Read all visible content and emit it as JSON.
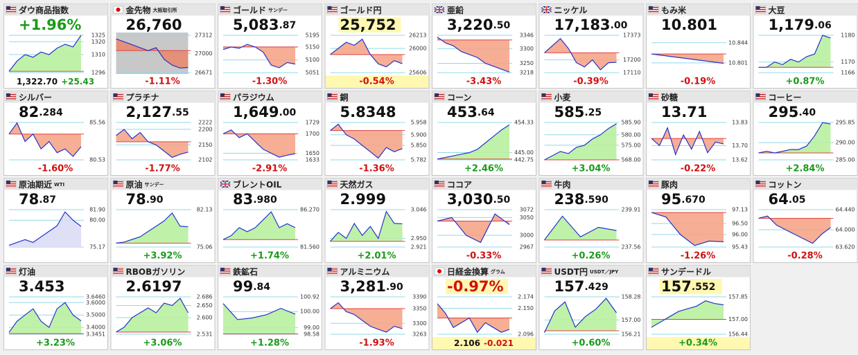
{
  "tiles": [
    {
      "flag": "us",
      "name": "ダウ商品指数",
      "price": [
        "+1.96%"
      ],
      "price_color": "#1a9a1a",
      "footer": [
        "1,322.70",
        "+25.43"
      ],
      "change_color": "#1a9a1a",
      "fill": "#b8f0a0",
      "ref": 1297,
      "ylim": [
        1296,
        1325
      ],
      "yticks": [
        1325,
        1320,
        1310,
        1296
      ],
      "series": [
        1297,
        1305,
        1310,
        1308,
        1312,
        1310,
        1315,
        1318,
        1316,
        1325
      ]
    },
    {
      "flag": "jp",
      "name": "金先物",
      "note": "大阪取引所",
      "price": [
        "26,760"
      ],
      "change": "-1.11%",
      "change_color": "#d01010",
      "fill": "#e88a70",
      "chart_bg": "#c8c8c8",
      "ref": 27050,
      "ylim": [
        26671,
        27312
      ],
      "yticks": [
        27312,
        27000,
        26671
      ],
      "series": [
        27250,
        27200,
        27150,
        27100,
        27050,
        27100,
        26900,
        26800,
        26750,
        26760
      ]
    },
    {
      "flag": "us",
      "name": "ゴールド",
      "note": "サンデー",
      "price": [
        "5,083",
        ".87"
      ],
      "change": "-1.30%",
      "change_color": "#d01010",
      "fill": "#f5a58a",
      "ref": 5150,
      "ylim": [
        5051,
        5195
      ],
      "yticks": [
        5195,
        5150,
        5100,
        5051
      ],
      "series": [
        5140,
        5150,
        5145,
        5160,
        5150,
        5130,
        5080,
        5070,
        5090,
        5084
      ]
    },
    {
      "flag": "us",
      "name": "ゴールド円",
      "price": [
        "25,752"
      ],
      "change": "-0.54%",
      "change_color": "#d01010",
      "fill": "#f5a58a",
      "highlight": true,
      "ref": 25900,
      "ylim": [
        25606,
        26213
      ],
      "yticks": [
        26213,
        26000,
        25606
      ],
      "series": [
        25900,
        26000,
        26100,
        26050,
        26150,
        25900,
        25750,
        25700,
        25800,
        25752
      ]
    },
    {
      "flag": "uk",
      "name": "亜鉛",
      "price": [
        "3,220",
        ".50"
      ],
      "change": "-3.43%",
      "change_color": "#d01010",
      "fill": "#f5a58a",
      "ref": 3330,
      "ylim": [
        3218,
        3346
      ],
      "yticks": [
        3346,
        3300,
        3250,
        3218
      ],
      "series": [
        3340,
        3320,
        3310,
        3290,
        3280,
        3270,
        3250,
        3240,
        3230,
        3220
      ]
    },
    {
      "flag": "uk",
      "name": "ニッケル",
      "price": [
        "17,183",
        ".00"
      ],
      "change": "-0.39%",
      "change_color": "#d01010",
      "fill": "#f5a58a",
      "ref": 17250,
      "ylim": [
        17110,
        17373
      ],
      "yticks": [
        17373,
        17200,
        17110
      ],
      "series": [
        17250,
        17300,
        17350,
        17280,
        17180,
        17150,
        17200,
        17130,
        17180,
        17183
      ]
    },
    {
      "flag": "us",
      "name": "もみ米",
      "price": [
        "10.801"
      ],
      "change": "-0.19%",
      "change_color": "#d01010",
      "fill": "#f5a58a",
      "ref": 10.82,
      "ylim": [
        10.78,
        10.86
      ],
      "yticks": [
        10.844,
        10.801
      ],
      "series": [
        10.82,
        10.8
      ]
    },
    {
      "flag": "us",
      "name": "大豆",
      "price": [
        "1,179",
        ".06"
      ],
      "change": "+0.87%",
      "change_color": "#1a9a1a",
      "fill": "#b8f0a0",
      "ref": 1168,
      "ylim": [
        1166,
        1180
      ],
      "yticks": [
        1180,
        1170,
        1166
      ],
      "series": [
        1168,
        1168,
        1170,
        1169,
        1171,
        1170,
        1172,
        1173,
        1180,
        1179
      ]
    },
    {
      "flag": "us",
      "name": "シルバー",
      "price": [
        "82",
        ".284"
      ],
      "change": "-1.60%",
      "change_color": "#d01010",
      "fill": "#f5a58a",
      "ref": 84,
      "ylim": [
        80.53,
        85.56
      ],
      "yticks": [
        85.56,
        80.53
      ],
      "series": [
        84,
        85.5,
        83,
        84,
        82,
        83,
        81.5,
        82,
        81,
        82.3
      ]
    },
    {
      "flag": "us",
      "name": "プラチナ",
      "price": [
        "2,127",
        ".55"
      ],
      "change": "-1.77%",
      "change_color": "#d01010",
      "fill": "#f5a58a",
      "ref": 2160,
      "ylim": [
        2102,
        2222
      ],
      "yticks": [
        2222,
        2200,
        2150,
        2102
      ],
      "series": [
        2180,
        2200,
        2170,
        2190,
        2160,
        2150,
        2130,
        2110,
        2120,
        2127
      ]
    },
    {
      "flag": "us",
      "name": "パラジウム",
      "price": [
        "1,649",
        ".00"
      ],
      "change": "-2.91%",
      "change_color": "#d01010",
      "fill": "#f5a58a",
      "ref": 1700,
      "ylim": [
        1633,
        1729
      ],
      "yticks": [
        1729,
        1700,
        1650,
        1633
      ],
      "series": [
        1700,
        1710,
        1690,
        1700,
        1680,
        1660,
        1650,
        1640,
        1645,
        1649
      ]
    },
    {
      "flag": "us",
      "name": "銅",
      "price": [
        "5.8348"
      ],
      "change": "-1.36%",
      "change_color": "#d01010",
      "fill": "#f5a58a",
      "ref": 5.92,
      "ylim": [
        5.782,
        5.958
      ],
      "yticks": [
        5.958,
        {
          "value": 5.9,
          "label": "5.900"
        },
        {
          "value": 5.85,
          "label": "5.850"
        },
        5.782
      ],
      "series": [
        5.92,
        5.95,
        5.9,
        5.88,
        5.85,
        5.82,
        5.79,
        5.84,
        5.82,
        5.835
      ]
    },
    {
      "flag": "us",
      "name": "コーン",
      "price": [
        "453",
        ".64"
      ],
      "change": "+2.46%",
      "change_color": "#1a9a1a",
      "fill": "#b8f0a0",
      "ref": 443,
      "ylim": [
        442.75,
        454.33
      ],
      "yticks": [
        454.33,
        {
          "value": 445,
          "label": "445.00"
        },
        442.75
      ],
      "series": [
        443,
        443.5,
        444,
        444.5,
        445,
        446,
        448,
        450,
        452,
        453.6
      ]
    },
    {
      "flag": "us",
      "name": "小麦",
      "price": [
        "585",
        ".25"
      ],
      "change": "+3.04%",
      "change_color": "#1a9a1a",
      "fill": "#b8f0a0",
      "ref": 568,
      "ylim": [
        568,
        585.9
      ],
      "yticks": [
        {
          "value": 585.9,
          "label": "585.90"
        },
        {
          "value": 580,
          "label": "580.00"
        },
        {
          "value": 575,
          "label": "575.00"
        },
        {
          "value": 568,
          "label": "568.00"
        }
      ],
      "series": [
        568,
        570,
        572,
        571,
        574,
        575,
        578,
        580,
        583,
        585.3
      ]
    },
    {
      "flag": "us",
      "name": "砂糖",
      "price": [
        "13.71"
      ],
      "change": "-0.22%",
      "change_color": "#d01010",
      "fill": "#f5a58a",
      "ref": 13.74,
      "ylim": [
        13.62,
        13.83
      ],
      "yticks": [
        13.83,
        {
          "value": 13.7,
          "label": "13.70"
        },
        13.62
      ],
      "series": [
        13.74,
        13.7,
        13.8,
        13.65,
        13.76,
        13.68,
        13.78,
        13.66,
        13.72,
        13.71
      ]
    },
    {
      "flag": "us",
      "name": "コーヒー",
      "price": [
        "295",
        ".40"
      ],
      "change": "+2.84%",
      "change_color": "#1a9a1a",
      "fill": "#b8f0a0",
      "ref": 287,
      "ylim": [
        285,
        295.85
      ],
      "yticks": [
        295.85,
        {
          "value": 290,
          "label": "290.00"
        },
        {
          "value": 285,
          "label": "285.00"
        }
      ],
      "series": [
        287,
        287.5,
        287,
        287.5,
        288,
        288,
        289,
        292,
        295.8,
        295.4
      ]
    },
    {
      "flag": "us",
      "name": "原油期近",
      "note": "WTI",
      "price": [
        "78",
        ".87"
      ],
      "fill": "#dcdcf5",
      "ylim": [
        75.17,
        81.9
      ],
      "yticks": [
        {
          "value": 81.9,
          "label": "81.90"
        },
        {
          "value": 80,
          "label": "80.00"
        },
        75.17
      ],
      "series": [
        75.5,
        76,
        76.5,
        76,
        77,
        78,
        79,
        81.5,
        80,
        78.9
      ]
    },
    {
      "flag": "us",
      "name": "原油",
      "note": "サンデー",
      "price": [
        "78",
        ".90"
      ],
      "change": "+3.92%",
      "change_color": "#1a9a1a",
      "fill": "#b8f0a0",
      "ref": 75.8,
      "ylim": [
        75.06,
        82.13
      ],
      "yticks": [
        82.13,
        75.06
      ],
      "series": [
        75.8,
        76,
        76.5,
        77,
        78,
        79,
        80,
        81.5,
        79,
        78.9
      ]
    },
    {
      "flag": "uk",
      "name": "ブレントOIL",
      "price": [
        "83",
        ".980"
      ],
      "change": "+1.74%",
      "change_color": "#1a9a1a",
      "fill": "#b8f0a0",
      "ref": 82.5,
      "ylim": [
        81.56,
        86.27
      ],
      "yticks": [
        {
          "value": 86.27,
          "label": "86.270"
        },
        {
          "value": 81.56,
          "label": "81.560"
        }
      ],
      "series": [
        82.5,
        83,
        84,
        83.5,
        84,
        85,
        86,
        84,
        84.5,
        84
      ]
    },
    {
      "flag": "us",
      "name": "天然ガス",
      "price": [
        "2.999"
      ],
      "change": "+2.01%",
      "change_color": "#1a9a1a",
      "fill": "#b8f0a0",
      "ref": 2.94,
      "ylim": [
        2.921,
        3.046
      ],
      "yticks": [
        3.046,
        {
          "value": 2.95,
          "label": "2.950"
        },
        2.921
      ],
      "series": [
        2.94,
        2.97,
        2.95,
        3.0,
        2.96,
        2.99,
        2.95,
        3.04,
        3.0,
        2.999
      ]
    },
    {
      "flag": "us",
      "name": "ココア",
      "price": [
        "3,030",
        ".50"
      ],
      "change": "-0.33%",
      "change_color": "#d01010",
      "fill": "#f5a58a",
      "ref": 3040,
      "ylim": [
        2967,
        3072
      ],
      "yticks": [
        3072,
        3050,
        3000,
        2967
      ],
      "series": [
        3040,
        3050,
        3000,
        2980,
        3060,
        3030
      ]
    },
    {
      "flag": "us",
      "name": "牛肉",
      "price": [
        "238",
        ".590"
      ],
      "change": "+0.26%",
      "change_color": "#1a9a1a",
      "fill": "#b8f0a0",
      "ref": 238,
      "ylim": [
        237.56,
        239.91
      ],
      "yticks": [
        239.91,
        237.56
      ],
      "series": [
        238,
        239.5,
        238.2,
        238.8,
        238.6
      ]
    },
    {
      "flag": "us",
      "name": "豚肉",
      "price": [
        "95",
        ".670"
      ],
      "change": "-1.26%",
      "change_color": "#d01010",
      "fill": "#f5a58a",
      "ref": 97,
      "ylim": [
        95.43,
        97.13
      ],
      "yticks": [
        97.13,
        {
          "value": 96.5,
          "label": "96.50"
        },
        {
          "value": 96,
          "label": "96.00"
        },
        95.43
      ],
      "series": [
        97,
        96.8,
        96,
        95.5,
        95.7,
        95.67
      ]
    },
    {
      "flag": "us",
      "name": "コットン",
      "price": [
        "64",
        ".05"
      ],
      "change": "-0.28%",
      "change_color": "#d01010",
      "fill": "#f5a58a",
      "ref": 64.25,
      "ylim": [
        63.62,
        64.44
      ],
      "yticks": [
        {
          "value": 64.44,
          "label": "64.440"
        },
        {
          "value": 64,
          "label": "64.000"
        },
        {
          "value": 63.62,
          "label": "63.620"
        }
      ],
      "series": [
        64.25,
        64.3,
        64.1,
        64,
        63.9,
        63.8,
        63.7,
        63.9,
        64.05
      ]
    },
    {
      "flag": "us",
      "name": "灯油",
      "price": [
        "3.453"
      ],
      "change": "+3.23%",
      "change_color": "#1a9a1a",
      "fill": "#b8f0a0",
      "ref": 3.35,
      "ylim": [
        3.3451,
        3.646
      ],
      "yticks": [
        {
          "value": 3.646,
          "label": "3.6460"
        },
        {
          "value": 3.6,
          "label": "3.6000"
        },
        {
          "value": 3.5,
          "label": "3.5000"
        },
        {
          "value": 3.4,
          "label": "3.4000"
        },
        3.3451
      ],
      "series": [
        3.36,
        3.45,
        3.5,
        3.55,
        3.45,
        3.4,
        3.55,
        3.6,
        3.5,
        3.453
      ]
    },
    {
      "flag": "us",
      "name": "RBOBガソリン",
      "price": [
        "2.6197"
      ],
      "change": "+3.06%",
      "change_color": "#1a9a1a",
      "fill": "#b8f0a0",
      "ref": 2.54,
      "ylim": [
        2.531,
        2.686
      ],
      "yticks": [
        2.686,
        {
          "value": 2.65,
          "label": "2.650"
        },
        {
          "value": 2.6,
          "label": "2.600"
        },
        2.531
      ],
      "series": [
        2.54,
        2.56,
        2.6,
        2.62,
        2.64,
        2.62,
        2.66,
        2.65,
        2.68,
        2.62
      ]
    },
    {
      "flag": "us",
      "name": "鉄鉱石",
      "price": [
        "99",
        ".84"
      ],
      "change": "+1.28%",
      "change_color": "#1a9a1a",
      "fill": "#b8f0a0",
      "ref": 98.6,
      "ylim": [
        98.58,
        100.92
      ],
      "yticks": [
        100.92,
        {
          "value": 100,
          "label": "100.00"
        },
        {
          "value": 99,
          "label": "99.00"
        },
        98.58
      ],
      "series": [
        100.5,
        99.5,
        99.6,
        99.8,
        100.2,
        99.84
      ]
    },
    {
      "flag": "us",
      "name": "アルミニウム",
      "price": [
        "3,281",
        ".90"
      ],
      "change": "-1.93%",
      "change_color": "#d01010",
      "fill": "#f5a58a",
      "ref": 3350,
      "ylim": [
        3263,
        3390
      ],
      "yticks": [
        3390,
        3350,
        3300,
        3263
      ],
      "series": [
        3350,
        3370,
        3340,
        3330,
        3310,
        3290,
        3280,
        3270,
        3290,
        3282
      ]
    },
    {
      "flag": "jp",
      "name": "日経金換算",
      "note": "グラム",
      "price": [
        "-0.97%"
      ],
      "price_color": "#d01010",
      "footer": [
        "2.106",
        "-0.021"
      ],
      "change_color": "#d01010",
      "fill": "#f5a58a",
      "highlight": true,
      "ref": 2.13,
      "ylim": [
        2.096,
        2.174
      ],
      "yticks": [
        2.174,
        {
          "value": 2.15,
          "label": "2.150"
        },
        2.096
      ],
      "series": [
        2.16,
        2.14,
        2.11,
        2.12,
        2.13,
        2.1,
        2.12,
        2.11,
        2.1,
        2.106
      ]
    },
    {
      "flag": "us",
      "name": "USDT円",
      "note": "USDT／JPY",
      "price": [
        "157",
        ".429"
      ],
      "change": "+0.60%",
      "change_color": "#1a9a1a",
      "fill": "#b8f0a0",
      "ref": 156.4,
      "ylim": [
        156.21,
        158.28
      ],
      "yticks": [
        158.28,
        {
          "value": 157,
          "label": "157.00"
        },
        156.21
      ],
      "series": [
        156.3,
        157.5,
        158,
        156.6,
        157.2,
        157.6,
        158.2,
        157.4
      ]
    },
    {
      "flag": "us",
      "name": "サンデードル",
      "price": [
        "157",
        ".552"
      ],
      "change": "+0.34%",
      "change_color": "#1a9a1a",
      "fill": "#b8f0a0",
      "highlight": true,
      "ref": 157,
      "ylim": [
        156.44,
        157.85
      ],
      "yticks": [
        157.85,
        {
          "value": 157,
          "label": "157.00"
        },
        156.44
      ],
      "series": [
        156.7,
        156.9,
        157.1,
        157.3,
        157.4,
        157.5,
        157.7,
        157.6,
        157.55
      ]
    }
  ]
}
